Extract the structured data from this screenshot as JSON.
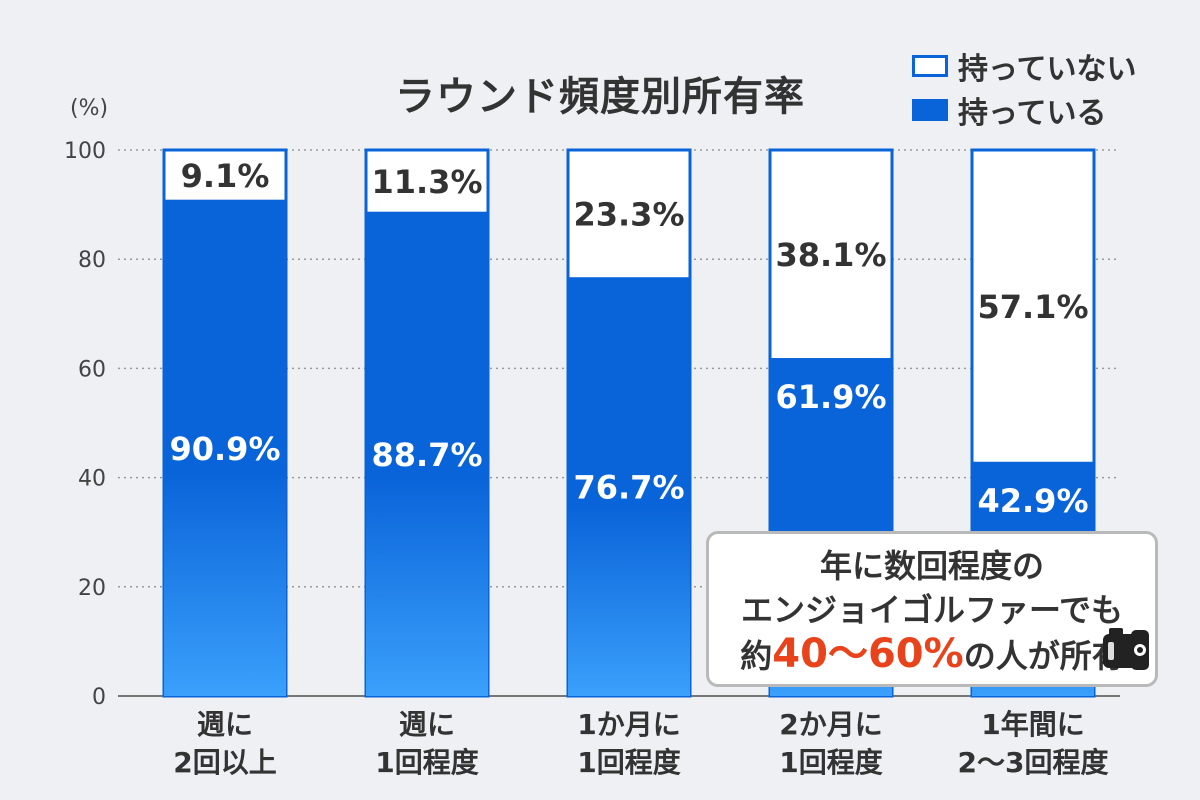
{
  "chart_data": {
    "type": "bar",
    "stacked": true,
    "title": "ラウンド頻度別所有率",
    "ylabel": "(%)",
    "ylim": [
      0,
      100
    ],
    "yticks": [
      "0",
      "20",
      "40",
      "60",
      "80",
      "100"
    ],
    "grid": "dotted-horizontal",
    "legend_position": "top-right",
    "categories": [
      [
        "週に",
        "2回以上"
      ],
      [
        "週に",
        "1回程度"
      ],
      [
        "1か月に",
        "1回程度"
      ],
      [
        "2か月に",
        "1回程度"
      ],
      [
        "1年間に",
        "2〜3回程度"
      ]
    ],
    "series": [
      {
        "name": "持っている",
        "values": [
          90.9,
          88.7,
          76.7,
          61.9,
          42.9
        ],
        "labels": [
          "90.9%",
          "88.7%",
          "76.7%",
          "61.9%",
          "42.9%"
        ],
        "color": "#0a64d9"
      },
      {
        "name": "持っていない",
        "values": [
          9.1,
          11.3,
          23.3,
          38.1,
          57.1
        ],
        "labels": [
          "9.1%",
          "11.3%",
          "23.3%",
          "38.1%",
          "57.1%"
        ],
        "color": "#ffffff"
      }
    ]
  },
  "legend": {
    "not_owned": "持っていない",
    "owned": "持っている"
  },
  "callout": {
    "line1": "年に数回程度の",
    "line2": "エンジョイゴルファーでも",
    "line3_prefix": "約",
    "line3_highlight": "40〜60%",
    "line3_suffix": "の人が所有",
    "icon": "rangefinder-icon"
  },
  "colors": {
    "owned_top": "#0a64d9",
    "owned_bottom": "#3aa0fb",
    "border": "#0a64d9",
    "highlight": "#e8431b",
    "background": "#eef0f4"
  }
}
